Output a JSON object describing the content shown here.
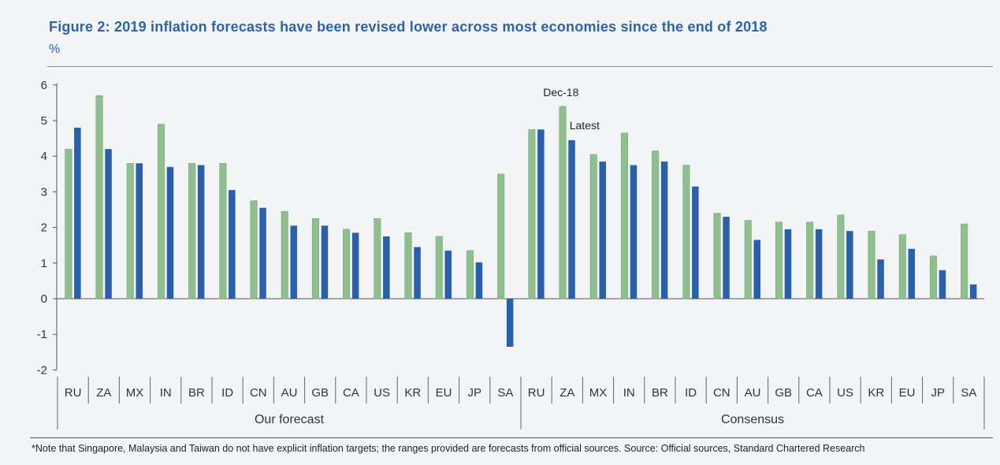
{
  "title": "Figure 2: 2019 inflation forecasts have been revised lower across most economies since the end of 2018",
  "unit_label": "%",
  "footnote": "*Note that Singapore, Malaysia and Taiwan do not have explicit inflation targets; the ranges provided are forecasts from official sources. Source: Official sources, Standard Chartered Research",
  "colors": {
    "dec18": "#8fbf8f",
    "latest": "#2a5fab",
    "title": "#2a63b0"
  },
  "chart_data": {
    "type": "bar",
    "ylim": [
      -2,
      6
    ],
    "yticks": [
      -2,
      -1,
      0,
      1,
      2,
      3,
      4,
      5,
      6
    ],
    "groups": [
      {
        "name": "Our forecast",
        "categories": [
          "RU",
          "ZA",
          "MX",
          "IN",
          "BR",
          "ID",
          "CN",
          "AU",
          "GB",
          "CA",
          "US",
          "KR",
          "EU",
          "JP",
          "SA"
        ]
      },
      {
        "name": "Consensus",
        "categories": [
          "RU",
          "ZA",
          "MX",
          "IN",
          "BR",
          "ID",
          "CN",
          "AU",
          "GB",
          "CA",
          "US",
          "KR",
          "EU",
          "JP",
          "SA"
        ]
      }
    ],
    "annotations": {
      "dec18": "Dec-18",
      "latest": "Latest"
    },
    "series": [
      {
        "key": "dec18",
        "values": [
          4.2,
          5.7,
          3.8,
          4.9,
          3.8,
          3.8,
          2.75,
          2.45,
          2.25,
          1.95,
          2.25,
          1.85,
          1.75,
          1.35,
          3.5,
          4.75,
          5.4,
          4.05,
          4.65,
          4.15,
          3.75,
          2.4,
          2.2,
          2.15,
          2.15,
          2.35,
          1.9,
          1.8,
          1.2,
          2.1
        ]
      },
      {
        "key": "latest",
        "values": [
          4.8,
          4.2,
          3.8,
          3.7,
          3.75,
          3.05,
          2.55,
          2.05,
          2.05,
          1.85,
          1.75,
          1.45,
          1.35,
          1.02,
          -1.35,
          4.75,
          4.45,
          3.85,
          3.75,
          3.85,
          3.15,
          2.3,
          1.65,
          1.95,
          1.95,
          1.9,
          1.1,
          1.4,
          0.8,
          0.4
        ]
      }
    ]
  }
}
